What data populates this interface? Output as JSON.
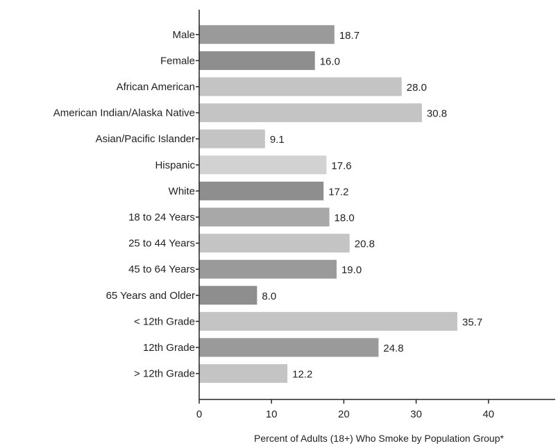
{
  "chart_data": {
    "type": "bar",
    "orientation": "horizontal",
    "categories": [
      "Male",
      "Female",
      "African American",
      "American Indian/Alaska Native",
      "Asian/Pacific Islander",
      "Hispanic",
      "White",
      "18 to 24 Years",
      "25 to 44 Years",
      "45 to 64 Years",
      "65 Years and Older",
      "< 12th Grade",
      "12th Grade",
      "> 12th Grade"
    ],
    "values": [
      18.7,
      16.0,
      28.0,
      30.8,
      9.1,
      17.6,
      17.2,
      18.0,
      20.8,
      19.0,
      8.0,
      35.7,
      24.8,
      12.2
    ],
    "value_labels": [
      "18.7",
      "16.0",
      "28.0",
      "30.8",
      "9.1",
      "17.6",
      "17.2",
      "18.0",
      "20.8",
      "19.0",
      "8.0",
      "35.7",
      "24.8",
      "12.2"
    ],
    "bar_colors": [
      "#9a9a9a",
      "#8e8e8e",
      "#c4c4c4",
      "#c4c4c4",
      "#c4c4c4",
      "#d2d2d2",
      "#8e8e8e",
      "#a8a8a8",
      "#c4c4c4",
      "#9a9a9a",
      "#8e8e8e",
      "#c4c4c4",
      "#9a9a9a",
      "#c4c4c4"
    ],
    "xlabel": "Percent of Adults (18+) Who Smoke by Population Group*",
    "xlim": [
      0,
      50
    ],
    "xticks": [
      0,
      10,
      20,
      30,
      40
    ],
    "xtick_labels": [
      "0",
      "10",
      "20",
      "30",
      "40"
    ],
    "grid": false,
    "legend": false
  }
}
